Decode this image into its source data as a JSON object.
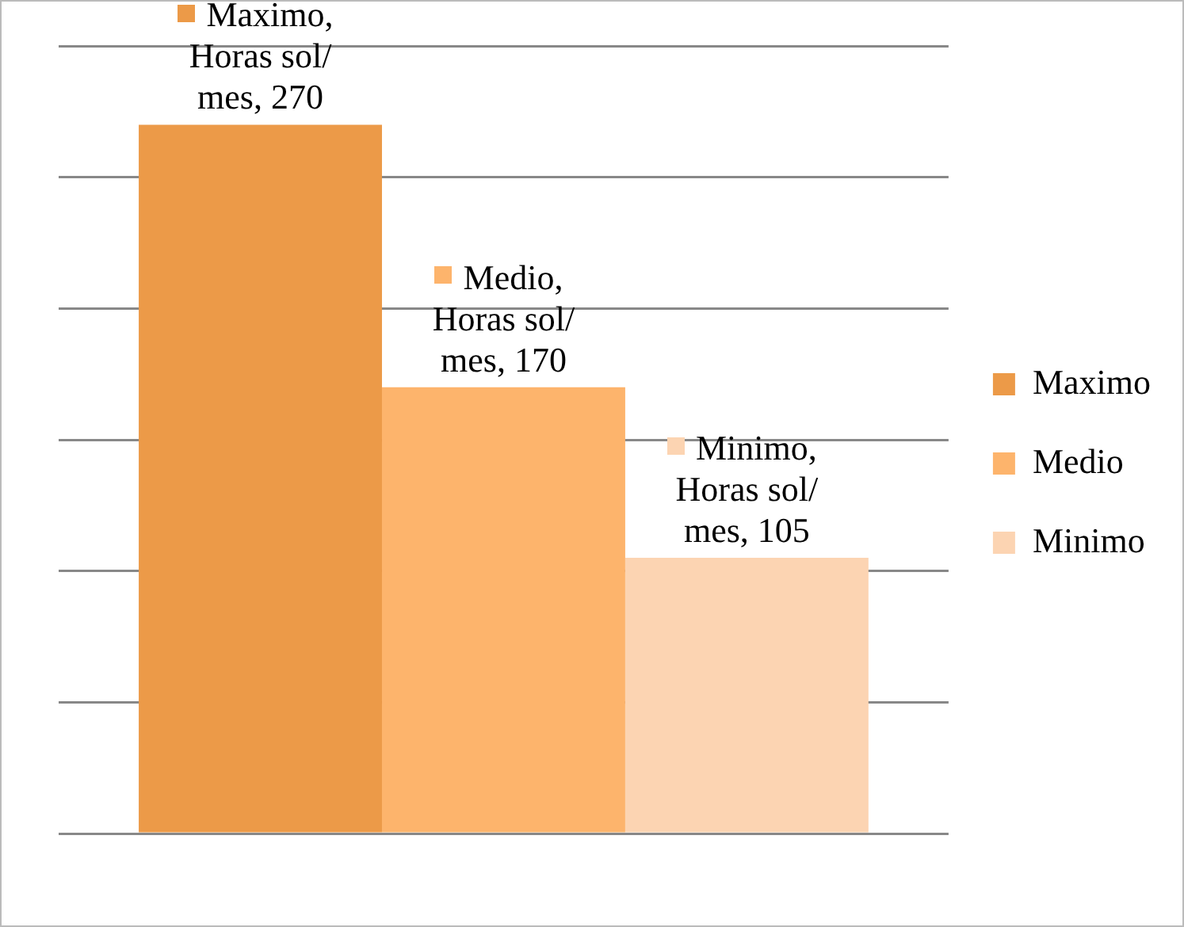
{
  "chart_data": {
    "type": "bar",
    "categories": [
      null
    ],
    "series": [
      {
        "name": "Maximo",
        "color": "#ec9a48",
        "values": [
          270
        ],
        "value_labels": [
          "Maximo, Horas sol/mes, 270"
        ]
      },
      {
        "name": "Medio",
        "color": "#fdb46c",
        "values": [
          170
        ],
        "value_labels": [
          "Medio, Horas sol/mes, 170"
        ]
      },
      {
        "name": "Minimo",
        "color": "#fcd4b2",
        "values": [
          105
        ],
        "value_labels": [
          "Minimo, Horas sol/mes, 105"
        ]
      }
    ],
    "ylim": [
      0,
      300
    ],
    "yticks": [
      {
        "value": 0,
        "label": null
      },
      {
        "value": 50,
        "label": null
      },
      {
        "value": 100,
        "label": null
      },
      {
        "value": 150,
        "label": null
      },
      {
        "value": 200,
        "label": null
      },
      {
        "value": 250,
        "label": null
      },
      {
        "value": 300,
        "label": null
      }
    ],
    "grid": "y",
    "legend": "right"
  }
}
